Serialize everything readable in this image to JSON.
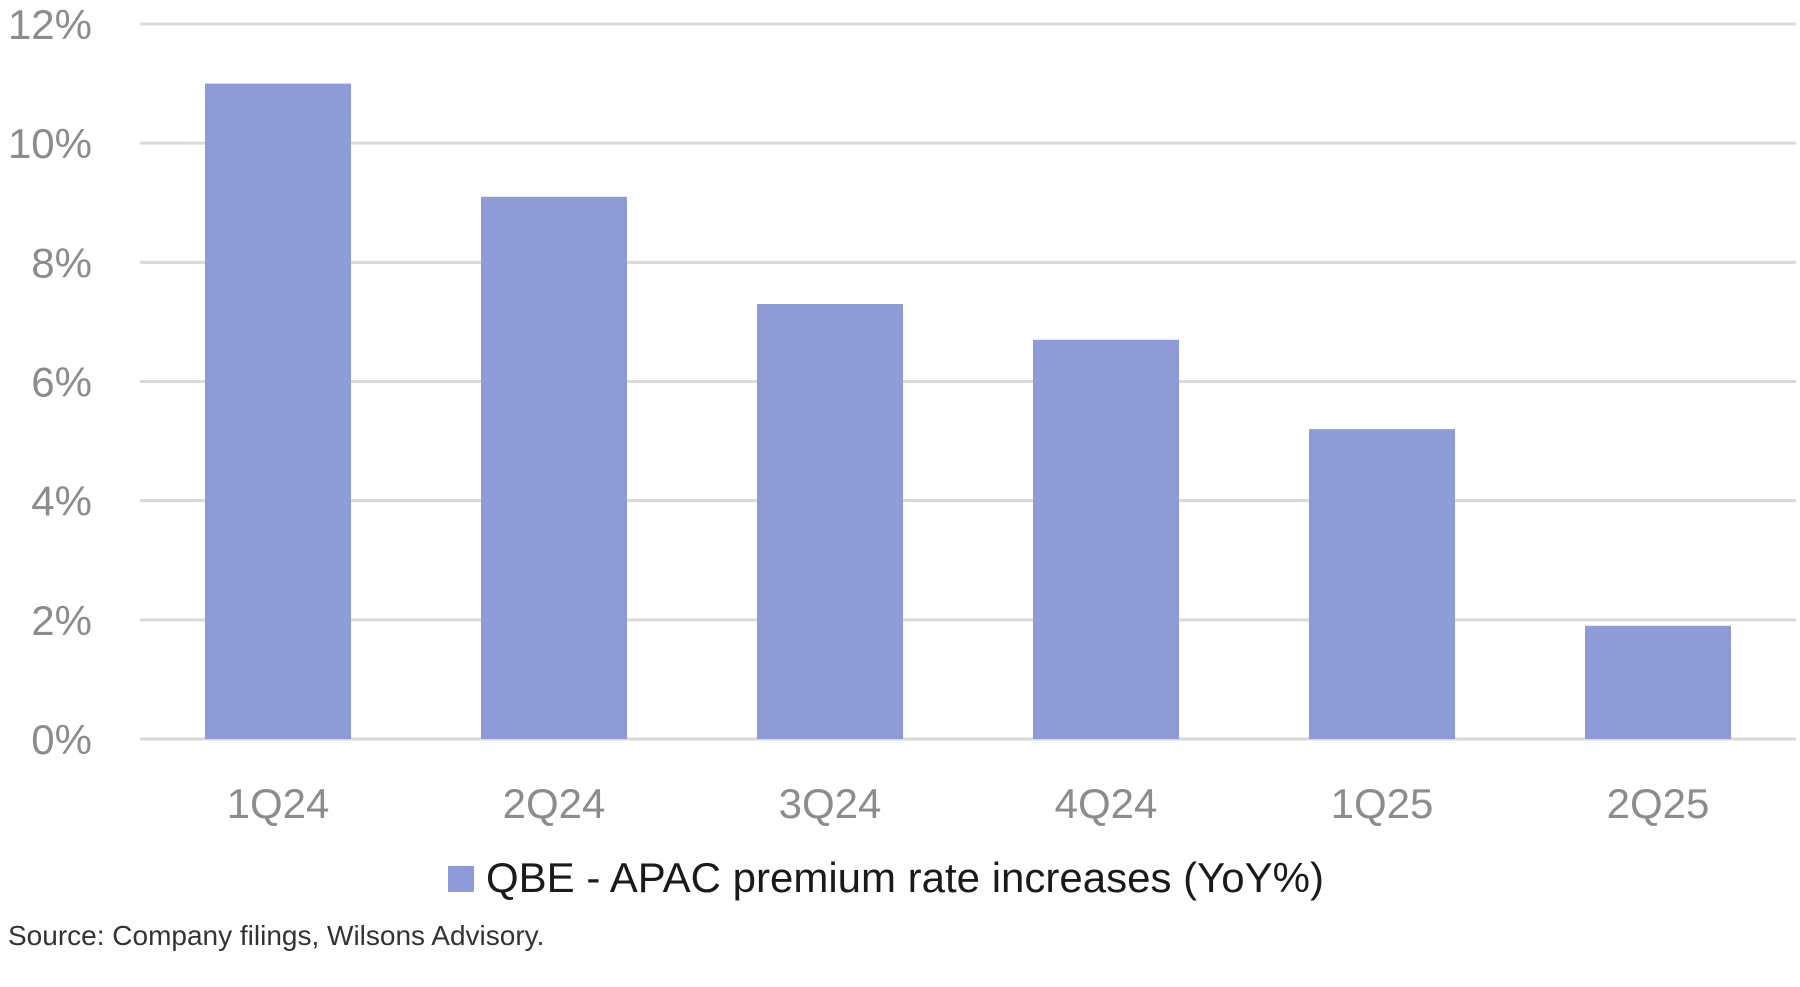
{
  "chart_data": {
    "type": "bar",
    "categories": [
      "1Q24",
      "2Q24",
      "3Q24",
      "4Q24",
      "1Q25",
      "2Q25"
    ],
    "series": [
      {
        "name": "QBE - APAC premium rate increases (YoY%)",
        "values": [
          11.0,
          9.1,
          7.3,
          6.7,
          5.2,
          1.9
        ]
      }
    ],
    "y_ticks": [
      "0%",
      "2%",
      "4%",
      "6%",
      "8%",
      "10%",
      "12%"
    ],
    "ylim": [
      0,
      12
    ],
    "grid": true,
    "legend_position": "bottom",
    "colors": {
      "bar": "#8e9bd6",
      "grid": "#d9d9d9",
      "tick": "#8c8c8c"
    }
  },
  "source_note": "Source: Company filings, Wilsons Advisory."
}
